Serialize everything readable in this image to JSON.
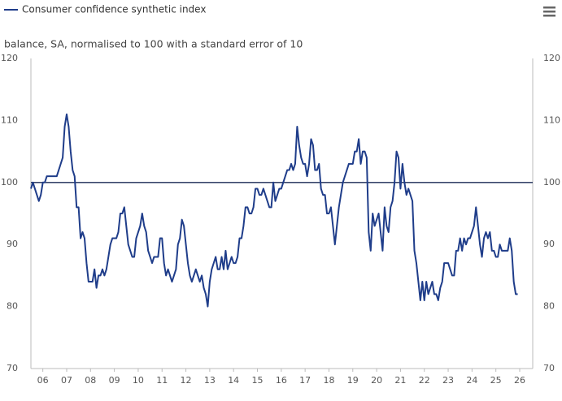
{
  "chart_data": {
    "type": "line",
    "subtitle": "balance, SA, normalised to 100 with a standard error of 10",
    "categories": [
      null,
      null,
      null,
      null,
      null,
      null,
      "06",
      null,
      null,
      null,
      null,
      null,
      null,
      null,
      null,
      null,
      null,
      null,
      "07",
      null,
      null,
      null,
      null,
      null,
      null,
      null,
      null,
      null,
      null,
      null,
      "08",
      null,
      null,
      null,
      null,
      null,
      null,
      null,
      null,
      null,
      null,
      null,
      "09",
      null,
      null,
      null,
      null,
      null,
      null,
      null,
      null,
      null,
      null,
      null,
      "10",
      null,
      null,
      null,
      null,
      null,
      null,
      null,
      null,
      null,
      null,
      null,
      "11",
      null,
      null,
      null,
      null,
      null,
      null,
      null,
      null,
      null,
      null,
      null,
      "12",
      null,
      null,
      null,
      null,
      null,
      null,
      null,
      null,
      null,
      null,
      null,
      "13",
      null,
      null,
      null,
      null,
      null,
      null,
      null,
      null,
      null,
      null,
      null,
      "14",
      null,
      null,
      null,
      null,
      null,
      null,
      null,
      null,
      null,
      null,
      null,
      "15",
      null,
      null,
      null,
      null,
      null,
      null,
      null,
      null,
      null,
      null,
      null,
      "16",
      null,
      null,
      null,
      null,
      null,
      null,
      null,
      null,
      null,
      null,
      null,
      "17",
      null,
      null,
      null,
      null,
      null,
      null,
      null,
      null,
      null,
      null,
      null,
      "18",
      null,
      null,
      null,
      null,
      null,
      null,
      null,
      null,
      null,
      null,
      null,
      "19",
      null,
      null,
      null,
      null,
      null,
      null,
      null,
      null,
      null,
      null,
      null,
      "20",
      null,
      null,
      null,
      null,
      null,
      null,
      null,
      null,
      null,
      null,
      null,
      "21",
      null,
      null,
      null,
      null,
      null,
      null,
      null,
      null,
      null,
      null,
      null,
      "22",
      null,
      null,
      null,
      null,
      null,
      null,
      null,
      null,
      null,
      null,
      null,
      "23",
      null,
      null,
      null,
      null,
      null,
      null,
      null,
      null,
      null,
      null,
      null,
      "24",
      null,
      null,
      null,
      null,
      null,
      null,
      null,
      null,
      null,
      null,
      null,
      "25",
      null,
      null,
      null,
      null,
      null,
      null,
      null,
      null,
      null,
      null,
      null,
      "26"
    ],
    "series": [
      {
        "name": "Consumer confidence synthetic index",
        "color": "#1f3d8a",
        "values": [
          99,
          100,
          99,
          98,
          97,
          98,
          100,
          100,
          101,
          101,
          101,
          101,
          101,
          101,
          102,
          103,
          104,
          109,
          111,
          109,
          105,
          102,
          101,
          96,
          96,
          91,
          92,
          91,
          87,
          84,
          84,
          84,
          86,
          83,
          85,
          85,
          86,
          85,
          86,
          88,
          90,
          91,
          91,
          91,
          92,
          95,
          95,
          96,
          93,
          90,
          89,
          88,
          88,
          91,
          92,
          93,
          95,
          93,
          92,
          89,
          88,
          87,
          88,
          88,
          88,
          91,
          91,
          87,
          85,
          86,
          85,
          84,
          85,
          86,
          90,
          91,
          94,
          93,
          90,
          87,
          85,
          84,
          85,
          86,
          85,
          84,
          85,
          83,
          82,
          80,
          84,
          86,
          87,
          88,
          86,
          86,
          88,
          86,
          89,
          86,
          87,
          88,
          87,
          87,
          88,
          91,
          91,
          93,
          96,
          96,
          95,
          95,
          96,
          99,
          99,
          98,
          98,
          99,
          98,
          97,
          96,
          96,
          100,
          97,
          98,
          99,
          99,
          100,
          101,
          102,
          102,
          103,
          102,
          103,
          109,
          106,
          104,
          103,
          103,
          101,
          103,
          107,
          106,
          102,
          102,
          103,
          99,
          98,
          98,
          95,
          95,
          96,
          93,
          90,
          93,
          96,
          98,
          100,
          101,
          102,
          103,
          103,
          103,
          105,
          105,
          107,
          103,
          105,
          105,
          104,
          92,
          89,
          95,
          93,
          94,
          95,
          92,
          89,
          96,
          93,
          92,
          96,
          97,
          100,
          105,
          104,
          99,
          103,
          100,
          98,
          99,
          98,
          97,
          89,
          87,
          84,
          81,
          84,
          81,
          84,
          82,
          83,
          84,
          82,
          82,
          81,
          83,
          84,
          87,
          87,
          87,
          86,
          85,
          85,
          89,
          89,
          91,
          89,
          91,
          90,
          91,
          91,
          92,
          93,
          96,
          93,
          90,
          88,
          91,
          92,
          91,
          92,
          89,
          89,
          88,
          88,
          90,
          89,
          89,
          89,
          89,
          91,
          89,
          84,
          82,
          82,
          null
        ]
      }
    ],
    "ylim": [
      70,
      120
    ],
    "yticks": [
      70,
      80,
      90,
      100,
      110,
      120
    ],
    "hline": 100,
    "grid": false
  }
}
